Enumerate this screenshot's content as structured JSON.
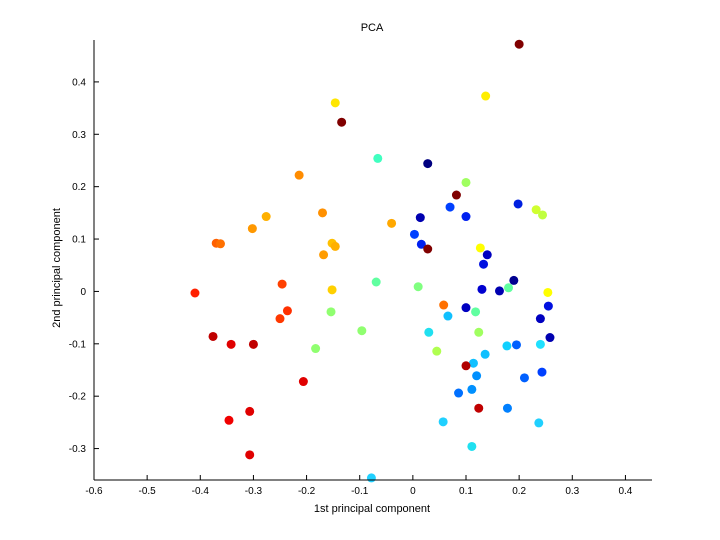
{
  "chart_data": {
    "type": "scatter",
    "title": "PCA",
    "xlabel": "1st principal component",
    "ylabel": "2nd principal component",
    "xlim": [
      -0.6,
      0.45
    ],
    "ylim": [
      -0.36,
      0.48
    ],
    "xticks": [
      -0.6,
      -0.5,
      -0.4,
      -0.3,
      -0.2,
      -0.1,
      0,
      0.1,
      0.2,
      0.3,
      0.4
    ],
    "xtick_labels": [
      "-0.6",
      "-0.5",
      "-0.4",
      "-0.3",
      "-0.2",
      "-0.1",
      "0",
      "0.1",
      "0.2",
      "0.3",
      "0.4"
    ],
    "yticks": [
      -0.3,
      -0.2,
      -0.1,
      0,
      0.1,
      0.2,
      0.3,
      0.4
    ],
    "ytick_labels": [
      "-0.3",
      "-0.2",
      "-0.1",
      "0",
      "0.1",
      "0.2",
      "0.3",
      "0.4"
    ],
    "grid": false,
    "legend": "none",
    "points": [
      {
        "x": 0.2,
        "y": 0.472,
        "color": "#800000"
      },
      {
        "x": 0.137,
        "y": 0.373,
        "color": "#ffee00"
      },
      {
        "x": -0.146,
        "y": 0.36,
        "color": "#ffe600"
      },
      {
        "x": -0.134,
        "y": 0.323,
        "color": "#800000"
      },
      {
        "x": -0.066,
        "y": 0.254,
        "color": "#40ffc0"
      },
      {
        "x": 0.028,
        "y": 0.244,
        "color": "#000080"
      },
      {
        "x": -0.214,
        "y": 0.222,
        "color": "#ff8c00"
      },
      {
        "x": 0.1,
        "y": 0.208,
        "color": "#a0ff60"
      },
      {
        "x": 0.082,
        "y": 0.184,
        "color": "#800000"
      },
      {
        "x": 0.198,
        "y": 0.167,
        "color": "#0020e0"
      },
      {
        "x": 0.07,
        "y": 0.161,
        "color": "#0040ff"
      },
      {
        "x": 0.232,
        "y": 0.156,
        "color": "#d0ff30"
      },
      {
        "x": -0.17,
        "y": 0.15,
        "color": "#ff9000"
      },
      {
        "x": 0.244,
        "y": 0.146,
        "color": "#c0ff40"
      },
      {
        "x": -0.276,
        "y": 0.143,
        "color": "#ffb000"
      },
      {
        "x": 0.1,
        "y": 0.143,
        "color": "#0020f0"
      },
      {
        "x": 0.014,
        "y": 0.141,
        "color": "#0000b0"
      },
      {
        "x": -0.04,
        "y": 0.13,
        "color": "#ffa800"
      },
      {
        "x": -0.302,
        "y": 0.12,
        "color": "#ff9800"
      },
      {
        "x": 0.003,
        "y": 0.109,
        "color": "#0040ff"
      },
      {
        "x": -0.37,
        "y": 0.092,
        "color": "#ff6000"
      },
      {
        "x": -0.362,
        "y": 0.091,
        "color": "#ff7000"
      },
      {
        "x": -0.152,
        "y": 0.092,
        "color": "#ffc000"
      },
      {
        "x": 0.016,
        "y": 0.09,
        "color": "#0020f0"
      },
      {
        "x": -0.146,
        "y": 0.086,
        "color": "#ffb000"
      },
      {
        "x": 0.127,
        "y": 0.083,
        "color": "#ffff00"
      },
      {
        "x": 0.028,
        "y": 0.081,
        "color": "#800000"
      },
      {
        "x": -0.168,
        "y": 0.07,
        "color": "#ff9c00"
      },
      {
        "x": 0.14,
        "y": 0.07,
        "color": "#0000c0"
      },
      {
        "x": 0.133,
        "y": 0.052,
        "color": "#0010e0"
      },
      {
        "x": 0.19,
        "y": 0.021,
        "color": "#000090"
      },
      {
        "x": -0.069,
        "y": 0.018,
        "color": "#60ffa0"
      },
      {
        "x": -0.246,
        "y": 0.014,
        "color": "#ff4000"
      },
      {
        "x": 0.01,
        "y": 0.009,
        "color": "#80ff80"
      },
      {
        "x": 0.18,
        "y": 0.007,
        "color": "#60ffa0"
      },
      {
        "x": 0.13,
        "y": 0.004,
        "color": "#0000d0"
      },
      {
        "x": -0.152,
        "y": 0.003,
        "color": "#ffd000"
      },
      {
        "x": 0.163,
        "y": 0.001,
        "color": "#0000b0"
      },
      {
        "x": 0.254,
        "y": -0.002,
        "color": "#ffff00"
      },
      {
        "x": -0.41,
        "y": -0.003,
        "color": "#ff2000"
      },
      {
        "x": 0.058,
        "y": -0.026,
        "color": "#ff7000"
      },
      {
        "x": 0.255,
        "y": -0.028,
        "color": "#0010e0"
      },
      {
        "x": 0.1,
        "y": -0.031,
        "color": "#0000c0"
      },
      {
        "x": -0.236,
        "y": -0.037,
        "color": "#ff3000"
      },
      {
        "x": -0.154,
        "y": -0.039,
        "color": "#90ff70"
      },
      {
        "x": 0.118,
        "y": -0.039,
        "color": "#60ffa0"
      },
      {
        "x": 0.066,
        "y": -0.047,
        "color": "#10c0ff"
      },
      {
        "x": -0.25,
        "y": -0.052,
        "color": "#ff3800"
      },
      {
        "x": 0.24,
        "y": -0.052,
        "color": "#0000c0"
      },
      {
        "x": -0.096,
        "y": -0.075,
        "color": "#90ff70"
      },
      {
        "x": 0.03,
        "y": -0.078,
        "color": "#20e0f0"
      },
      {
        "x": 0.124,
        "y": -0.078,
        "color": "#a0ff60"
      },
      {
        "x": -0.376,
        "y": -0.086,
        "color": "#c00000"
      },
      {
        "x": 0.258,
        "y": -0.088,
        "color": "#0000b0"
      },
      {
        "x": -0.342,
        "y": -0.101,
        "color": "#e00000"
      },
      {
        "x": -0.3,
        "y": -0.101,
        "color": "#c00000"
      },
      {
        "x": 0.24,
        "y": -0.101,
        "color": "#20e0ff"
      },
      {
        "x": 0.195,
        "y": -0.102,
        "color": "#0060ff"
      },
      {
        "x": 0.177,
        "y": -0.104,
        "color": "#10d0ff"
      },
      {
        "x": -0.183,
        "y": -0.109,
        "color": "#90ff70"
      },
      {
        "x": 0.045,
        "y": -0.114,
        "color": "#b0ff50"
      },
      {
        "x": 0.136,
        "y": -0.12,
        "color": "#10c0ff"
      },
      {
        "x": 0.114,
        "y": -0.137,
        "color": "#10c0ff"
      },
      {
        "x": 0.1,
        "y": -0.142,
        "color": "#b00000"
      },
      {
        "x": 0.12,
        "y": -0.161,
        "color": "#0090ff"
      },
      {
        "x": 0.21,
        "y": -0.165,
        "color": "#0060ff"
      },
      {
        "x": -0.206,
        "y": -0.172,
        "color": "#e00000"
      },
      {
        "x": 0.243,
        "y": -0.154,
        "color": "#0040ff"
      },
      {
        "x": 0.111,
        "y": -0.187,
        "color": "#0090ff"
      },
      {
        "x": 0.086,
        "y": -0.194,
        "color": "#0070ff"
      },
      {
        "x": 0.124,
        "y": -0.223,
        "color": "#c00000"
      },
      {
        "x": 0.178,
        "y": -0.223,
        "color": "#0080ff"
      },
      {
        "x": -0.307,
        "y": -0.229,
        "color": "#e00000"
      },
      {
        "x": -0.346,
        "y": -0.246,
        "color": "#f00000"
      },
      {
        "x": 0.057,
        "y": -0.249,
        "color": "#20d0ff"
      },
      {
        "x": 0.237,
        "y": -0.251,
        "color": "#20d0ff"
      },
      {
        "x": 0.111,
        "y": -0.296,
        "color": "#20e0f0"
      },
      {
        "x": -0.307,
        "y": -0.312,
        "color": "#e00000"
      },
      {
        "x": -0.078,
        "y": -0.356,
        "color": "#20d0ff"
      }
    ]
  }
}
